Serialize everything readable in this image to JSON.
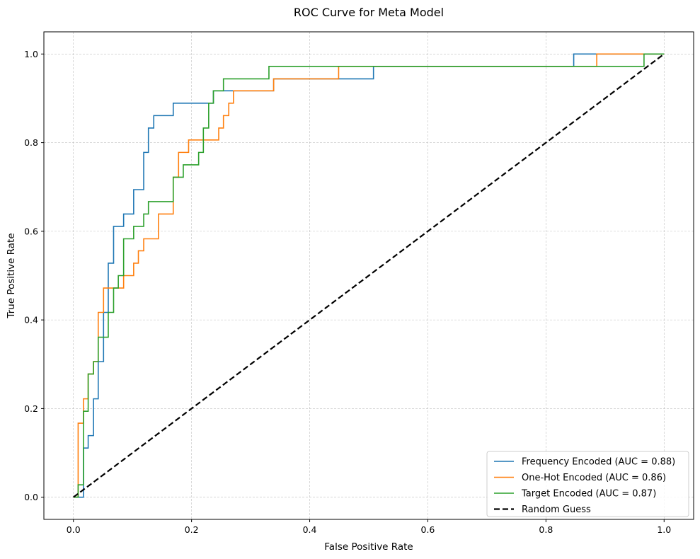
{
  "chart_data": {
    "type": "line",
    "title": "ROC Curve for Meta Model",
    "xlabel": "False Positive Rate",
    "ylabel": "True Positive Rate",
    "xlim": [
      -0.05,
      1.05
    ],
    "ylim": [
      -0.05,
      1.05
    ],
    "xticks": [
      0.0,
      0.2,
      0.4,
      0.6,
      0.8,
      1.0
    ],
    "yticks": [
      0.0,
      0.2,
      0.4,
      0.6,
      0.8,
      1.0
    ],
    "xtick_labels": [
      "0.0",
      "0.2",
      "0.4",
      "0.6",
      "0.8",
      "1.0"
    ],
    "ytick_labels": [
      "0.0",
      "0.2",
      "0.4",
      "0.6",
      "0.8",
      "1.0"
    ],
    "grid": true,
    "legend_position": "lower-right",
    "series": [
      {
        "name": "Frequency Encoded (AUC = 0.88)",
        "color": "#1f77b4",
        "style": "solid",
        "step": true,
        "x": [
          0.0,
          0.017,
          0.017,
          0.025,
          0.025,
          0.034,
          0.034,
          0.042,
          0.042,
          0.051,
          0.051,
          0.059,
          0.059,
          0.068,
          0.068,
          0.085,
          0.085,
          0.102,
          0.102,
          0.119,
          0.119,
          0.127,
          0.127,
          0.136,
          0.136,
          0.169,
          0.169,
          0.203,
          0.203,
          0.237,
          0.237,
          0.254,
          0.254,
          0.339,
          0.339,
          0.39,
          0.39,
          0.508,
          0.508,
          0.847,
          0.847,
          1.0
        ],
        "y": [
          0.0,
          0.0,
          0.111,
          0.111,
          0.139,
          0.139,
          0.222,
          0.222,
          0.306,
          0.306,
          0.417,
          0.417,
          0.528,
          0.528,
          0.611,
          0.611,
          0.639,
          0.639,
          0.694,
          0.694,
          0.778,
          0.778,
          0.833,
          0.833,
          0.861,
          0.861,
          0.889,
          0.889,
          0.889,
          0.889,
          0.917,
          0.917,
          0.917,
          0.917,
          0.944,
          0.944,
          0.944,
          0.944,
          0.972,
          0.972,
          1.0,
          1.0
        ]
      },
      {
        "name": "One-Hot Encoded (AUC = 0.86)",
        "color": "#ff7f0e",
        "style": "solid",
        "step": true,
        "x": [
          0.0,
          0.008,
          0.008,
          0.017,
          0.017,
          0.025,
          0.025,
          0.034,
          0.034,
          0.042,
          0.042,
          0.051,
          0.051,
          0.068,
          0.068,
          0.085,
          0.085,
          0.102,
          0.102,
          0.11,
          0.11,
          0.119,
          0.119,
          0.144,
          0.144,
          0.169,
          0.169,
          0.178,
          0.178,
          0.195,
          0.195,
          0.246,
          0.246,
          0.254,
          0.254,
          0.263,
          0.263,
          0.271,
          0.271,
          0.339,
          0.339,
          0.449,
          0.449,
          0.886,
          0.886,
          1.0
        ],
        "y": [
          0.0,
          0.0,
          0.167,
          0.167,
          0.222,
          0.222,
          0.278,
          0.278,
          0.306,
          0.306,
          0.417,
          0.417,
          0.472,
          0.472,
          0.472,
          0.472,
          0.5,
          0.5,
          0.528,
          0.528,
          0.556,
          0.556,
          0.583,
          0.583,
          0.639,
          0.639,
          0.722,
          0.722,
          0.778,
          0.778,
          0.806,
          0.806,
          0.833,
          0.833,
          0.861,
          0.861,
          0.889,
          0.889,
          0.917,
          0.917,
          0.944,
          0.944,
          0.972,
          0.972,
          1.0,
          1.0
        ]
      },
      {
        "name": "Target Encoded (AUC = 0.87)",
        "color": "#2ca02c",
        "style": "solid",
        "step": true,
        "x": [
          0.0,
          0.008,
          0.008,
          0.017,
          0.017,
          0.025,
          0.025,
          0.034,
          0.034,
          0.042,
          0.042,
          0.059,
          0.059,
          0.068,
          0.068,
          0.076,
          0.076,
          0.085,
          0.085,
          0.102,
          0.102,
          0.119,
          0.119,
          0.127,
          0.127,
          0.169,
          0.169,
          0.186,
          0.186,
          0.212,
          0.212,
          0.22,
          0.22,
          0.229,
          0.229,
          0.237,
          0.237,
          0.254,
          0.254,
          0.331,
          0.331,
          0.966,
          0.966,
          1.0
        ],
        "y": [
          0.0,
          0.0,
          0.028,
          0.028,
          0.194,
          0.194,
          0.278,
          0.278,
          0.306,
          0.306,
          0.361,
          0.361,
          0.417,
          0.417,
          0.472,
          0.472,
          0.5,
          0.5,
          0.583,
          0.583,
          0.611,
          0.611,
          0.639,
          0.639,
          0.667,
          0.667,
          0.722,
          0.722,
          0.75,
          0.75,
          0.778,
          0.778,
          0.833,
          0.833,
          0.889,
          0.889,
          0.917,
          0.917,
          0.944,
          0.944,
          0.972,
          0.972,
          1.0,
          1.0
        ]
      },
      {
        "name": "Random Guess",
        "color": "#000000",
        "style": "dashed",
        "step": false,
        "x": [
          0.0,
          1.0
        ],
        "y": [
          0.0,
          1.0
        ]
      }
    ]
  }
}
